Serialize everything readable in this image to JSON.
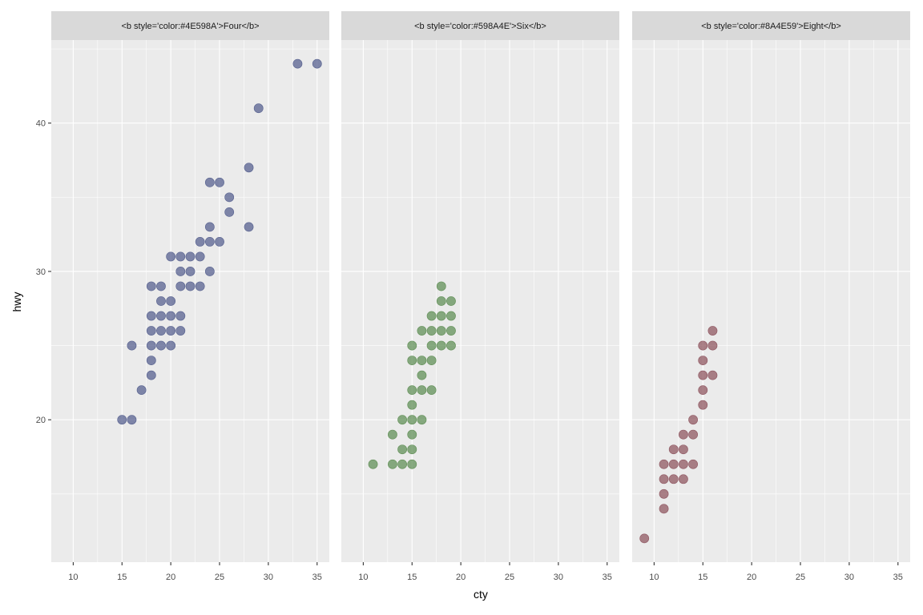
{
  "chart_data": {
    "type": "scatter",
    "xlabel": "cty",
    "ylabel": "hwy",
    "xlim": [
      7.75,
      36.25
    ],
    "ylim": [
      10.4,
      45.6
    ],
    "x_ticks": [
      10,
      15,
      20,
      25,
      30,
      35
    ],
    "y_ticks": [
      20,
      30,
      40
    ],
    "grid": true,
    "point_opacity": 0.7,
    "facets": [
      {
        "label": "<b style='color:#4E598A'>Four</b>",
        "color": "#4E598A",
        "points": [
          [
            15,
            20
          ],
          [
            16,
            20
          ],
          [
            17,
            22
          ],
          [
            16,
            25
          ],
          [
            18,
            23
          ],
          [
            18,
            24
          ],
          [
            18,
            25
          ],
          [
            19,
            25
          ],
          [
            20,
            25
          ],
          [
            18,
            26
          ],
          [
            19,
            26
          ],
          [
            20,
            26
          ],
          [
            21,
            26
          ],
          [
            18,
            27
          ],
          [
            19,
            27
          ],
          [
            20,
            27
          ],
          [
            21,
            27
          ],
          [
            19,
            28
          ],
          [
            20,
            28
          ],
          [
            18,
            29
          ],
          [
            19,
            29
          ],
          [
            21,
            29
          ],
          [
            22,
            29
          ],
          [
            23,
            29
          ],
          [
            21,
            30
          ],
          [
            22,
            30
          ],
          [
            24,
            30
          ],
          [
            20,
            31
          ],
          [
            21,
            31
          ],
          [
            22,
            31
          ],
          [
            23,
            31
          ],
          [
            23,
            32
          ],
          [
            24,
            32
          ],
          [
            25,
            32
          ],
          [
            24,
            33
          ],
          [
            28,
            33
          ],
          [
            26,
            34
          ],
          [
            26,
            35
          ],
          [
            24,
            36
          ],
          [
            25,
            36
          ],
          [
            28,
            37
          ],
          [
            29,
            41
          ],
          [
            33,
            44
          ],
          [
            35,
            44
          ]
        ]
      },
      {
        "label": "<b style='color:#598A4E'>Six</b>",
        "color": "#598A4E",
        "points": [
          [
            11,
            17
          ],
          [
            13,
            17
          ],
          [
            14,
            17
          ],
          [
            15,
            17
          ],
          [
            14,
            18
          ],
          [
            15,
            18
          ],
          [
            13,
            19
          ],
          [
            15,
            19
          ],
          [
            14,
            20
          ],
          [
            15,
            20
          ],
          [
            16,
            20
          ],
          [
            15,
            21
          ],
          [
            15,
            22
          ],
          [
            16,
            22
          ],
          [
            17,
            22
          ],
          [
            16,
            23
          ],
          [
            15,
            24
          ],
          [
            16,
            24
          ],
          [
            17,
            24
          ],
          [
            15,
            25
          ],
          [
            17,
            25
          ],
          [
            18,
            25
          ],
          [
            19,
            25
          ],
          [
            16,
            26
          ],
          [
            17,
            26
          ],
          [
            18,
            26
          ],
          [
            19,
            26
          ],
          [
            17,
            27
          ],
          [
            18,
            27
          ],
          [
            19,
            27
          ],
          [
            18,
            28
          ],
          [
            19,
            28
          ],
          [
            18,
            29
          ]
        ]
      },
      {
        "label": "<b style='color:#8A4E59'>Eight</b>",
        "color": "#8A4E59",
        "points": [
          [
            9,
            12
          ],
          [
            11,
            14
          ],
          [
            11,
            15
          ],
          [
            11,
            16
          ],
          [
            12,
            16
          ],
          [
            13,
            16
          ],
          [
            11,
            17
          ],
          [
            12,
            17
          ],
          [
            13,
            17
          ],
          [
            14,
            17
          ],
          [
            12,
            18
          ],
          [
            13,
            18
          ],
          [
            13,
            19
          ],
          [
            14,
            19
          ],
          [
            14,
            20
          ],
          [
            15,
            21
          ],
          [
            15,
            22
          ],
          [
            15,
            23
          ],
          [
            16,
            23
          ],
          [
            15,
            24
          ],
          [
            15,
            25
          ],
          [
            16,
            25
          ],
          [
            16,
            26
          ]
        ]
      }
    ]
  }
}
